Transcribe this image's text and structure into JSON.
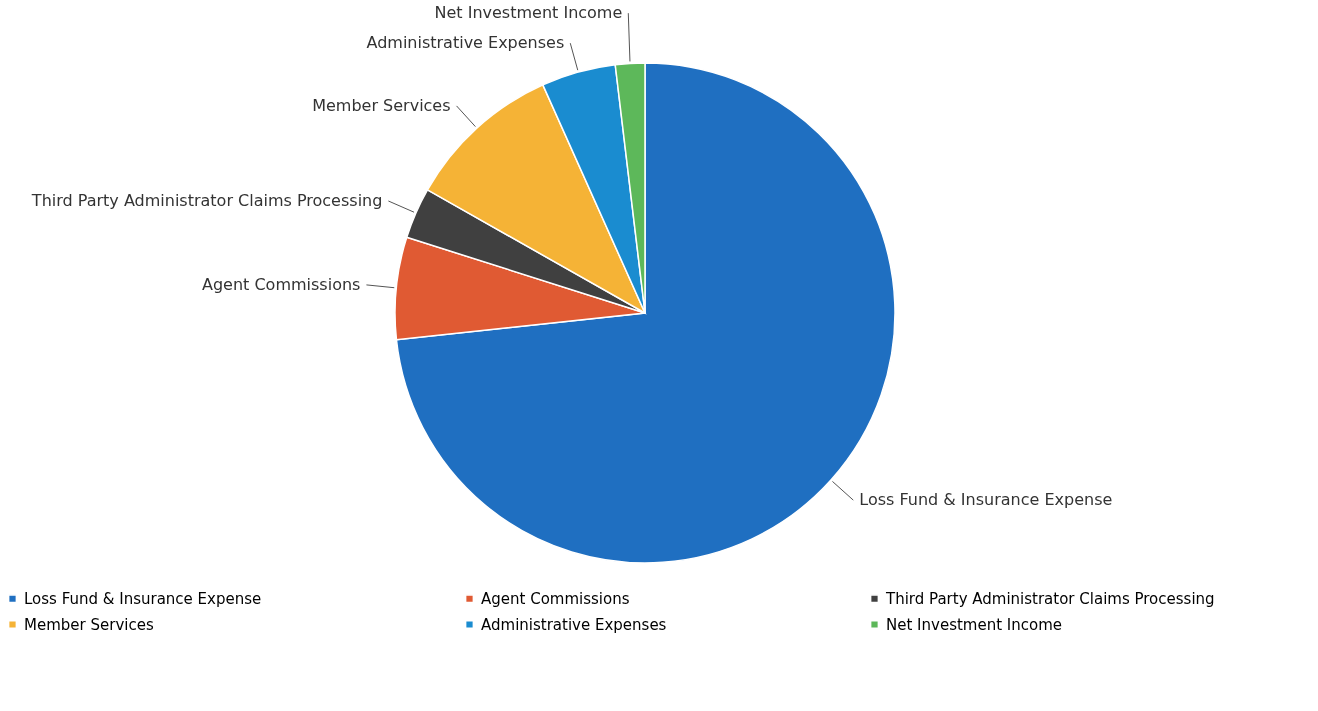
{
  "chart_data": {
    "type": "pie",
    "categories": [
      "Loss Fund & Insurance Expense",
      "Agent Commissions",
      "Third Party Administrator Claims Processing",
      "Member Services",
      "Administrative Expenses",
      "Net Investment Income"
    ],
    "values": [
      73.3,
      6.6,
      3.3,
      10.1,
      4.8,
      1.9
    ],
    "colors": [
      "#1f6fc1",
      "#e05a33",
      "#404040",
      "#f5b336",
      "#1a8cd0",
      "#5db85a"
    ],
    "legend": "bottom"
  }
}
